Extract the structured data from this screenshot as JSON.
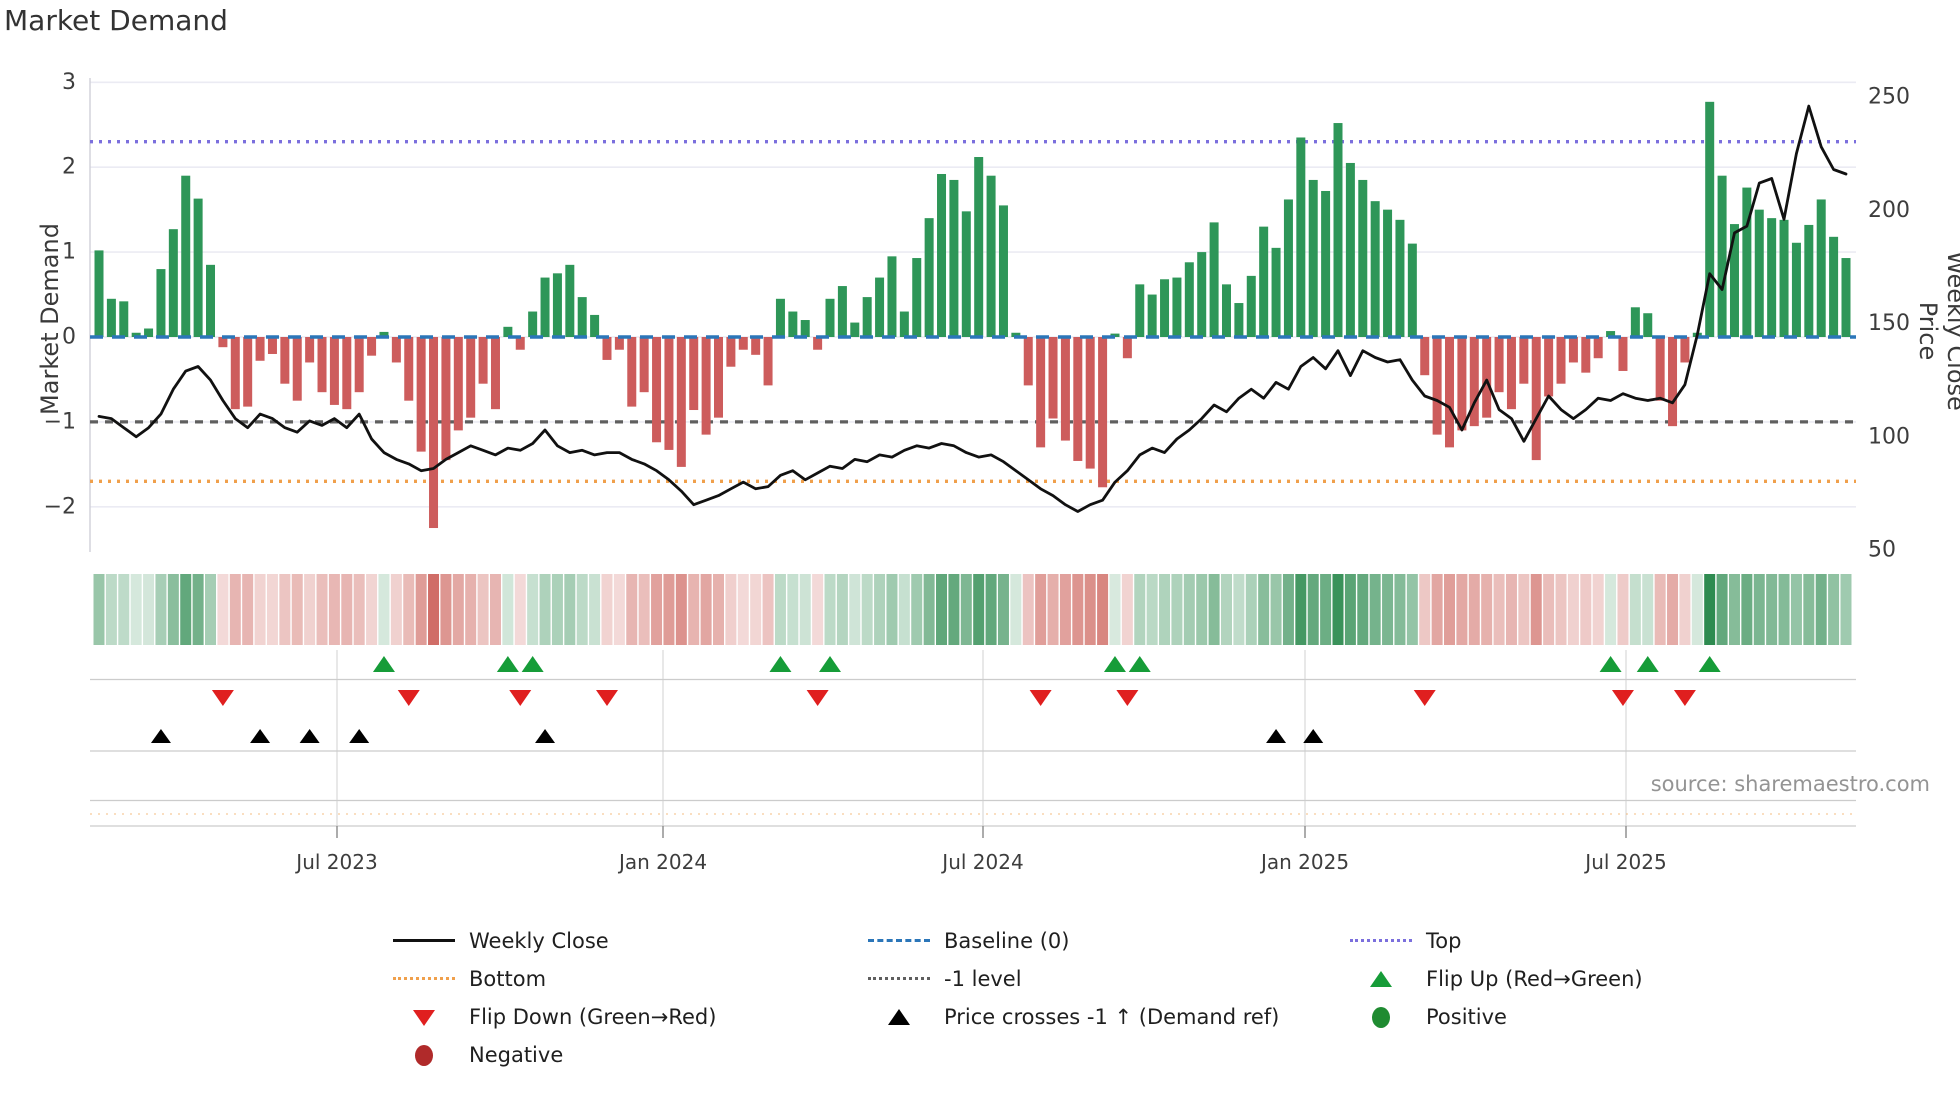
{
  "title": "Market Demand",
  "source": "source: sharemaestro.com",
  "axes": {
    "left_label": "Market Demand",
    "right_label": "Weekly Close Price",
    "y_left_ticks": [
      "3",
      "2",
      "1",
      "0",
      "−1",
      "−2"
    ],
    "y_left_tick_values": [
      3,
      2,
      1,
      0,
      -1,
      -2
    ],
    "y_right_ticks": [
      "250",
      "200",
      "150",
      "100",
      "50"
    ],
    "y_right_tick_values": [
      250,
      200,
      150,
      100,
      50
    ],
    "x_ticks": [
      "Jul 2023",
      "Jan 2024",
      "Jul 2024",
      "Jan 2025",
      "Jul 2025"
    ]
  },
  "chart_data": {
    "type": "bar",
    "title": "Market Demand",
    "xlabel": "",
    "ylabel_left": "Market Demand",
    "ylabel_right": "Weekly Close Price",
    "x_tick_labels": [
      "Jul 2023",
      "Jan 2024",
      "Jul 2024",
      "Jan 2025",
      "Jul 2025"
    ],
    "y_left_range": [
      -2.6,
      3.05
    ],
    "y_right_range": [
      48,
      252
    ],
    "grid": "horizontal",
    "ref_lines": {
      "top": 2.3,
      "baseline": 0,
      "minus1_level": -1,
      "bottom": -1.7
    },
    "series": [
      {
        "name": "Market Demand",
        "type": "bar",
        "axis": "left",
        "values": [
          1.02,
          0.45,
          0.42,
          0.05,
          0.1,
          0.8,
          1.27,
          1.9,
          1.63,
          0.85,
          -0.12,
          -0.85,
          -0.82,
          -0.28,
          -0.2,
          -0.55,
          -0.75,
          -0.3,
          -0.65,
          -0.8,
          -0.85,
          -0.65,
          -0.22,
          0.06,
          -0.3,
          -0.75,
          -1.35,
          -2.25,
          -1.45,
          -1.1,
          -0.95,
          -0.55,
          -0.85,
          0.12,
          -0.15,
          0.3,
          0.7,
          0.75,
          0.85,
          0.47,
          0.26,
          -0.27,
          -0.15,
          -0.82,
          -0.65,
          -1.24,
          -1.33,
          -1.53,
          -0.86,
          -1.15,
          -0.95,
          -0.35,
          -0.15,
          -0.21,
          -0.57,
          0.45,
          0.3,
          0.2,
          -0.15,
          0.45,
          0.6,
          0.17,
          0.47,
          0.7,
          0.95,
          0.3,
          0.93,
          1.4,
          1.92,
          1.85,
          1.48,
          2.12,
          1.9,
          1.55,
          0.05,
          -0.57,
          -1.3,
          -0.96,
          -1.22,
          -1.46,
          -1.55,
          -1.77,
          0.04,
          -0.25,
          0.62,
          0.5,
          0.68,
          0.7,
          0.88,
          1.0,
          1.35,
          0.62,
          0.4,
          0.72,
          1.3,
          1.05,
          1.62,
          2.35,
          1.85,
          1.72,
          2.52,
          2.05,
          1.85,
          1.6,
          1.5,
          1.38,
          1.1,
          -0.45,
          -1.15,
          -1.3,
          -1.1,
          -1.05,
          -0.95,
          -0.65,
          -0.85,
          -0.55,
          -1.45,
          -0.7,
          -0.55,
          -0.3,
          -0.42,
          -0.25,
          0.07,
          -0.4,
          0.35,
          0.28,
          -0.75,
          -1.05,
          -0.3,
          0.05,
          2.77,
          1.9,
          1.33,
          1.76,
          1.5,
          1.4,
          1.38,
          1.11,
          1.32,
          1.62,
          1.18,
          0.93
        ]
      },
      {
        "name": "Weekly Close",
        "type": "line",
        "axis": "right",
        "values": [
          109,
          108,
          104,
          100,
          104,
          110,
          121,
          129,
          131,
          125,
          116,
          108,
          104,
          110,
          108,
          104,
          102,
          107,
          105,
          108,
          104,
          110,
          99,
          93,
          90,
          88,
          85,
          86,
          90,
          93,
          96,
          94,
          92,
          95,
          94,
          97,
          103,
          96,
          93,
          94,
          92,
          93,
          93,
          90,
          88,
          85,
          81,
          76,
          70,
          72,
          74,
          77,
          80,
          77,
          78,
          83,
          85,
          81,
          84,
          87,
          86,
          90,
          89,
          92,
          91,
          94,
          96,
          95,
          97,
          96,
          93,
          91,
          92,
          89,
          85,
          81,
          77,
          74,
          70,
          67,
          70,
          72,
          80,
          85,
          92,
          95,
          93,
          99,
          103,
          108,
          114,
          111,
          117,
          121,
          117,
          124,
          121,
          131,
          135,
          130,
          138,
          127,
          138,
          135,
          133,
          134,
          125,
          118,
          116,
          113,
          103,
          115,
          125,
          112,
          108,
          98,
          108,
          118,
          112,
          108,
          112,
          117,
          116,
          119,
          117,
          116,
          117,
          115,
          123,
          145,
          172,
          165,
          190,
          193,
          212,
          214,
          196,
          225,
          246,
          228,
          218,
          216
        ]
      }
    ],
    "heatmap_strip": "color intensity derived from Market Demand bar values (green positive, red negative)",
    "markers": {
      "flip_up_weeks": [
        23,
        33,
        35,
        55,
        59,
        82,
        84,
        122,
        125,
        130
      ],
      "flip_down_weeks": [
        10,
        25,
        34,
        41,
        58,
        76,
        83,
        107,
        123,
        128
      ],
      "price_cross_weeks": [
        5,
        13,
        17,
        21,
        36,
        95,
        98
      ]
    },
    "legend_position": "bottom"
  },
  "legend": {
    "items": [
      {
        "label": "Weekly Close",
        "swatch": "line_solid",
        "color_key": "price_line"
      },
      {
        "label": "Baseline (0)",
        "swatch": "line_dashed",
        "color_key": "baseline"
      },
      {
        "label": "Top",
        "swatch": "line_dotted",
        "color_key": "top_line"
      },
      {
        "label": "Bottom",
        "swatch": "line_dotted",
        "color_key": "bottom_line"
      },
      {
        "label": "-1 level",
        "swatch": "line_dotted",
        "color_key": "minus1_line"
      },
      {
        "label": "Flip Up (Red→Green)",
        "swatch": "triangle_up",
        "color_key": "flip_up"
      },
      {
        "label": "Flip Down (Green→Red)",
        "swatch": "triangle_down",
        "color_key": "flip_down"
      },
      {
        "label": "Price crosses -1 ↑ (Demand ref)",
        "swatch": "triangle_up",
        "color_key": "price_cross"
      },
      {
        "label": "Positive",
        "swatch": "circle",
        "color_key": "positive_dot"
      },
      {
        "label": "Negative",
        "swatch": "circle",
        "color_key": "negative_dot"
      }
    ]
  },
  "colors": {
    "bar_positive": "#2e9658",
    "bar_negative": "#cd5c5c",
    "price_line": "#111111",
    "baseline": "#2b76b9",
    "top_line": "#7b6fdd",
    "bottom_line": "#f0a04b",
    "minus1_line": "#5f5f5f",
    "flip_up": "#169c38",
    "flip_down": "#e01f1f",
    "price_cross": "#000000",
    "positive_dot": "#1f8b31",
    "negative_dot": "#b02a2a",
    "heat_green": "#2e8b50",
    "heat_red": "#c8544c",
    "grid": "#ebebf3",
    "tick_text": "#3d3d3d"
  }
}
